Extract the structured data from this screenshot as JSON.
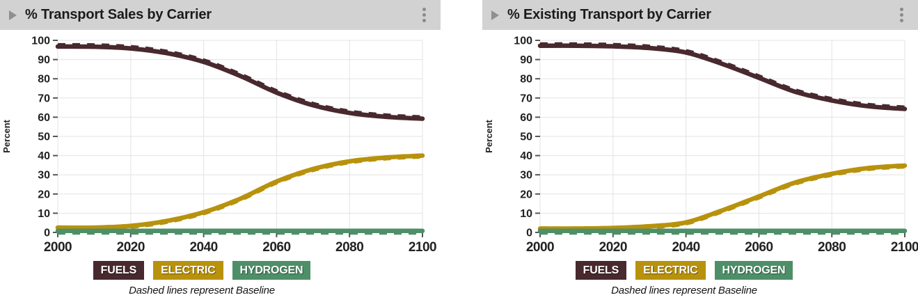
{
  "colors": {
    "header_bg": "#d2d2d2",
    "header_text": "#1b1b1b",
    "header_icon": "#8f8f8f",
    "grid": "#e3e3e3",
    "tick": "#555555",
    "tick_label": "#222222",
    "fuels": "#48292e",
    "electric": "#b8920d",
    "hydrogen": "#4e8f68",
    "legend_text": "#ffffff"
  },
  "panels": [
    {
      "header": {
        "title": "% Transport Sales by Carrier",
        "icons": [
          "collapse-triangle",
          "kebab-menu"
        ]
      },
      "caption": "Dashed lines represent Baseline",
      "chart_data": {
        "type": "line",
        "title": "% Transport Sales by Carrier",
        "xlabel": "",
        "ylabel": "Percent",
        "xlim": [
          2000,
          2100
        ],
        "ylim": [
          0,
          100
        ],
        "xticks": [
          2000,
          2020,
          2040,
          2060,
          2080,
          2100
        ],
        "yticks": [
          0,
          10,
          20,
          30,
          40,
          50,
          60,
          70,
          80,
          90,
          100
        ],
        "grid": true,
        "legend_position": "bottom",
        "note": "Dashed lines represent Baseline; dashed baseline overlaps the solid scenario lines",
        "x": [
          2000,
          2010,
          2020,
          2030,
          2040,
          2050,
          2060,
          2070,
          2080,
          2090,
          2100
        ],
        "series": [
          {
            "name": "FUELS",
            "color": "#48292e",
            "values": [
              96.8,
              96.7,
              95.8,
              93.3,
              88.8,
              81.5,
              72.8,
              66.2,
              62.2,
              60.2,
              59.2
            ],
            "baseline_offset": 0.45
          },
          {
            "name": "ELECTRIC",
            "color": "#b8920d",
            "values": [
              2.5,
              2.5,
              3.4,
              6.0,
              10.5,
              17.5,
              26.5,
              33.0,
              37.0,
              39.0,
              40.0
            ],
            "baseline_offset": -0.2
          },
          {
            "name": "HYDROGEN",
            "color": "#4e8f68",
            "values": [
              0.8,
              0.8,
              0.8,
              0.8,
              0.8,
              0.8,
              0.8,
              0.8,
              0.8,
              0.8,
              0.8
            ],
            "baseline_offset": -0.6
          }
        ]
      }
    },
    {
      "header": {
        "title": "% Existing Transport by Carrier",
        "icons": [
          "collapse-triangle",
          "kebab-menu"
        ]
      },
      "caption": "Dashed lines represent Baseline",
      "chart_data": {
        "type": "line",
        "title": "% Existing Transport by Carrier",
        "xlabel": "",
        "ylabel": "Percent",
        "xlim": [
          2000,
          2100
        ],
        "ylim": [
          0,
          100
        ],
        "xticks": [
          2000,
          2020,
          2040,
          2060,
          2080,
          2100
        ],
        "yticks": [
          0,
          10,
          20,
          30,
          40,
          50,
          60,
          70,
          80,
          90,
          100
        ],
        "grid": true,
        "legend_position": "bottom",
        "note": "Dashed lines represent Baseline; dashed baseline overlaps the solid scenario lines",
        "x": [
          2000,
          2010,
          2020,
          2030,
          2040,
          2050,
          2060,
          2070,
          2080,
          2090,
          2100
        ],
        "series": [
          {
            "name": "FUELS",
            "color": "#48292e",
            "values": [
              97.2,
              97.2,
              96.9,
              96.0,
              93.7,
              87.7,
              80.5,
              73.2,
              68.7,
              65.7,
              64.3
            ],
            "baseline_offset": 0.45
          },
          {
            "name": "ELECTRIC",
            "color": "#b8920d",
            "values": [
              2.0,
              2.0,
              2.3,
              3.2,
              5.2,
              11.5,
              18.7,
              26.0,
              30.5,
              33.5,
              34.8
            ],
            "baseline_offset": -0.2
          },
          {
            "name": "HYDROGEN",
            "color": "#4e8f68",
            "values": [
              0.8,
              0.8,
              0.8,
              0.8,
              0.8,
              0.8,
              0.8,
              0.8,
              0.8,
              0.8,
              0.8
            ],
            "baseline_offset": -0.6
          }
        ]
      }
    }
  ]
}
